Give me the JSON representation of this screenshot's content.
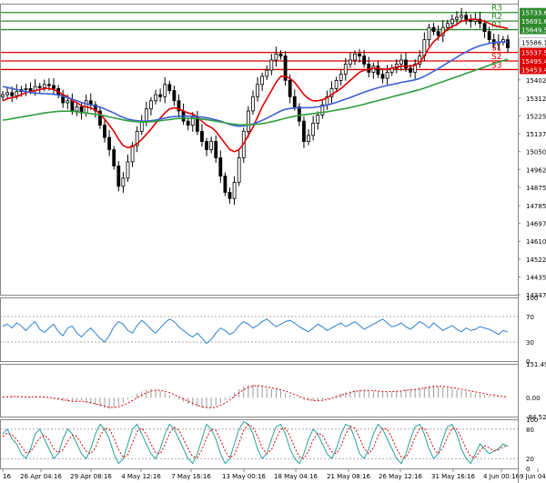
{
  "chart_data": [
    {
      "type": "candlestick",
      "panel": "price",
      "ylim": [
        14347.5,
        15777.0
      ],
      "y_ticks": [
        "15402.5",
        "15312.5",
        "15225.0",
        "15137.5",
        "15050.0",
        "14962.5",
        "14875.0",
        "14785.0",
        "14697.5",
        "14610.0",
        "14522.5",
        "14435.0",
        "14347.5"
      ],
      "x_ticks": [
        "16",
        "26 Apr 04:16",
        "29 Apr 08:16",
        "4 May 12:16",
        "7 May 16:16",
        "13 May 00:16",
        "18 May 04:16",
        "21 May 08:16",
        "26 May 12:16",
        "31 May 16:16",
        "4 Jun 00:16",
        "9 Jun 04:16"
      ],
      "levels": [
        {
          "name": "R3",
          "value": 15733.6,
          "label": "15733.6",
          "color": "#2e8b2e"
        },
        {
          "name": "R2",
          "value": 15691.6,
          "label": "15691.6",
          "color": "#2e8b2e"
        },
        {
          "name": "R1",
          "value": 15649.5,
          "label": "15649.5",
          "color": "#2e8b2e"
        },
        {
          "name": "S1",
          "value": 15537.5,
          "label": "15537.5",
          "color": "#e00000"
        },
        {
          "name": "S2",
          "value": 15495.4,
          "label": "15495.4",
          "color": "#e00000"
        },
        {
          "name": "S3",
          "value": 15453.4,
          "label": "15453.4",
          "color": "#e00000"
        }
      ],
      "price_labels": [
        {
          "label": "15586.1",
          "value": 15586.1,
          "bg": "#ffffff",
          "fg": "#000000"
        }
      ],
      "closes": [
        15330,
        15340,
        15325,
        15345,
        15355,
        15360,
        15350,
        15370,
        15365,
        15380,
        15375,
        15360,
        15330,
        15290,
        15300,
        15250,
        15270,
        15240,
        15300,
        15280,
        15250,
        15180,
        15120,
        15060,
        14980,
        14880,
        14920,
        15000,
        15080,
        15150,
        15200,
        15260,
        15300,
        15330,
        15320,
        15380,
        15350,
        15300,
        15250,
        15200,
        15180,
        15220,
        15150,
        15100,
        15060,
        15100,
        15020,
        14930,
        14850,
        14820,
        14900,
        15020,
        15150,
        15250,
        15320,
        15380,
        15420,
        15450,
        15500,
        15530,
        15520,
        15400,
        15320,
        15270,
        15200,
        15100,
        15130,
        15190,
        15230,
        15280,
        15320,
        15360,
        15400,
        15430,
        15480,
        15500,
        15530,
        15520,
        15480,
        15440,
        15470,
        15430,
        15410,
        15440,
        15460,
        15480,
        15500,
        15460,
        15440,
        15480,
        15520,
        15600,
        15660,
        15640,
        15620,
        15660,
        15680,
        15700,
        15710,
        15720,
        15700,
        15690,
        15700,
        15680,
        15640,
        15600,
        15580,
        15590,
        15600,
        15560
      ],
      "series": [
        {
          "name": "",
          "color": "#e00000",
          "values": [
            15300,
            15310,
            15315,
            15320,
            15330,
            15340,
            15345,
            15350,
            15355,
            15360,
            15360,
            15355,
            15345,
            15330,
            15320,
            15300,
            15290,
            15275,
            15270,
            15265,
            15255,
            15235,
            15210,
            15180,
            15150,
            15110,
            15080,
            15070,
            15075,
            15090,
            15110,
            15135,
            15160,
            15190,
            15215,
            15240,
            15260,
            15265,
            15260,
            15250,
            15240,
            15235,
            15220,
            15200,
            15180,
            15170,
            15150,
            15120,
            15090,
            15060,
            15050,
            15060,
            15090,
            15130,
            15170,
            15220,
            15270,
            15310,
            15350,
            15390,
            15420,
            15420,
            15410,
            15390,
            15360,
            15330,
            15310,
            15300,
            15300,
            15305,
            15315,
            15330,
            15345,
            15360,
            15380,
            15400,
            15420,
            15440,
            15450,
            15455,
            15460,
            15460,
            15455,
            15455,
            15460,
            15465,
            15470,
            15470,
            15470,
            15475,
            15490,
            15520,
            15560,
            15590,
            15610,
            15630,
            15650,
            15665,
            15675,
            15690,
            15695,
            15700,
            15700,
            15695,
            15690,
            15680,
            15670,
            15665,
            15660,
            15655
          ]
        },
        {
          "name": "",
          "color": "#3c5fd6",
          "values": [
            15370,
            15365,
            15360,
            15355,
            15350,
            15345,
            15340,
            15338,
            15336,
            15335,
            15334,
            15332,
            15328,
            15322,
            15316,
            15308,
            15300,
            15292,
            15285,
            15280,
            15275,
            15268,
            15260,
            15250,
            15240,
            15228,
            15218,
            15210,
            15205,
            15202,
            15200,
            15200,
            15202,
            15205,
            15210,
            15215,
            15220,
            15222,
            15224,
            15225,
            15225,
            15224,
            15222,
            15220,
            15216,
            15212,
            15206,
            15200,
            15192,
            15184,
            15178,
            15175,
            15176,
            15180,
            15186,
            15194,
            15204,
            15214,
            15226,
            15238,
            15250,
            15258,
            15262,
            15265,
            15266,
            15266,
            15266,
            15267,
            15270,
            15274,
            15279,
            15285,
            15292,
            15300,
            15308,
            15316,
            15325,
            15334,
            15342,
            15350,
            15357,
            15364,
            15370,
            15375,
            15380,
            15385,
            15390,
            15394,
            15398,
            15403,
            15410,
            15420,
            15432,
            15445,
            15458,
            15472,
            15486,
            15500,
            15514,
            15528,
            15540,
            15552,
            15562,
            15570,
            15576,
            15582,
            15586,
            15588,
            15589,
            15588
          ]
        },
        {
          "name": "",
          "color": "#2e9e3e",
          "values": [
            15205,
            15208,
            15212,
            15216,
            15220,
            15224,
            15228,
            15232,
            15236,
            15240,
            15243,
            15246,
            15248,
            15249,
            15249,
            15248,
            15246,
            15243,
            15240,
            15237,
            15234,
            15230,
            15226,
            15221,
            15216,
            15211,
            15206,
            15202,
            15199,
            15197,
            15196,
            15196,
            15197,
            15199,
            15202,
            15205,
            15208,
            15211,
            15213,
            15214,
            15214,
            15213,
            15212,
            15210,
            15207,
            15204,
            15200,
            15196,
            15192,
            15188,
            15185,
            15183,
            15182,
            15182,
            15183,
            15185,
            15188,
            15192,
            15197,
            15202,
            15208,
            15214,
            15219,
            15224,
            15228,
            15231,
            15234,
            15237,
            15240,
            15243,
            15246,
            15250,
            15254,
            15258,
            15262,
            15267,
            15272,
            15277,
            15283,
            15289,
            15295,
            15301,
            15307,
            15313,
            15319,
            15325,
            15331,
            15337,
            15343,
            15349,
            15355,
            15362,
            15370,
            15378,
            15386,
            15394,
            15402,
            15410,
            15418,
            15426,
            15434,
            15442,
            15450,
            15458,
            15466,
            15474,
            15482,
            15490,
            15497,
            15504
          ]
        }
      ]
    },
    {
      "type": "line",
      "panel": "oscillator",
      "ylim": [
        0,
        100
      ],
      "y_ticks": [
        "100",
        "70",
        "30",
        "0"
      ],
      "series": [
        {
          "name": "",
          "color": "#2a7fd4",
          "values": [
            55,
            58,
            52,
            60,
            55,
            48,
            56,
            62,
            50,
            45,
            52,
            58,
            46,
            40,
            52,
            55,
            44,
            38,
            46,
            52,
            44,
            36,
            30,
            40,
            54,
            62,
            58,
            48,
            44,
            56,
            64,
            58,
            50,
            44,
            52,
            60,
            66,
            62,
            54,
            48,
            42,
            38,
            44,
            36,
            28,
            34,
            44,
            52,
            48,
            42,
            46,
            56,
            62,
            58,
            52,
            56,
            62,
            66,
            60,
            54,
            58,
            62,
            64,
            60,
            54,
            50,
            46,
            52,
            58,
            54,
            48,
            52,
            56,
            60,
            54,
            58,
            62,
            56,
            50,
            54,
            58,
            62,
            66,
            60,
            54,
            56,
            60,
            54,
            50,
            56,
            62,
            58,
            52,
            60,
            54,
            48,
            52,
            56,
            50,
            46,
            52,
            48,
            50,
            54,
            52,
            50,
            46,
            42,
            48,
            46
          ]
        }
      ]
    },
    {
      "type": "histogram",
      "panel": "macd",
      "ylim": [
        -84.52,
        151.49
      ],
      "y_ticks": [
        "151.49",
        "0.00",
        "-84.52"
      ],
      "values": [
        4,
        6,
        8,
        5,
        3,
        2,
        4,
        6,
        5,
        3,
        -2,
        -6,
        -10,
        -14,
        -18,
        -20,
        -16,
        -14,
        -22,
        -28,
        -34,
        -40,
        -46,
        -50,
        -44,
        -36,
        -22,
        -8,
        6,
        18,
        28,
        36,
        40,
        38,
        30,
        22,
        12,
        2,
        -8,
        -18,
        -28,
        -36,
        -42,
        -46,
        -48,
        -44,
        -36,
        -24,
        -10,
        6,
        22,
        38,
        50,
        58,
        60,
        56,
        50,
        44,
        40,
        36,
        32,
        22,
        12,
        4,
        -4,
        -10,
        -14,
        -16,
        -14,
        -10,
        -4,
        2,
        10,
        18,
        24,
        30,
        34,
        36,
        36,
        34,
        30,
        28,
        26,
        24,
        26,
        28,
        32,
        36,
        38,
        40,
        44,
        48,
        52,
        54,
        52,
        48,
        44,
        40,
        36,
        32,
        28,
        24,
        20,
        16,
        12,
        8,
        6,
        4,
        2,
        0
      ],
      "signal_values": [
        3,
        4,
        5,
        5,
        4,
        3,
        3,
        4,
        4,
        3,
        1,
        -2,
        -5,
        -9,
        -13,
        -16,
        -16,
        -16,
        -18,
        -22,
        -27,
        -32,
        -38,
        -43,
        -44,
        -41,
        -34,
        -24,
        -12,
        0,
        12,
        22,
        30,
        34,
        33,
        29,
        22,
        14,
        4,
        -6,
        -16,
        -25,
        -33,
        -40,
        -44,
        -45,
        -42,
        -35,
        -24,
        -10,
        6,
        22,
        36,
        46,
        52,
        54,
        52,
        48,
        44,
        40,
        36,
        30,
        22,
        14,
        6,
        -2,
        -8,
        -12,
        -13,
        -12,
        -8,
        -3,
        4,
        11,
        17,
        23,
        28,
        31,
        33,
        33,
        32,
        30,
        28,
        27,
        27,
        28,
        30,
        33,
        35,
        37,
        40,
        43,
        47,
        50,
        51,
        50,
        48,
        45,
        42,
        38,
        34,
        30,
        26,
        22,
        18,
        14,
        11,
        8,
        5,
        3
      ]
    },
    {
      "type": "line",
      "panel": "stochastic",
      "ylim": [
        0,
        100
      ],
      "y_ticks": [
        "100",
        "80",
        "20",
        "0"
      ],
      "series": [
        {
          "name": "",
          "color": "#2aa39a",
          "values": [
            70,
            80,
            60,
            50,
            30,
            20,
            40,
            70,
            80,
            60,
            40,
            20,
            30,
            60,
            80,
            70,
            50,
            30,
            20,
            40,
            70,
            90,
            80,
            60,
            30,
            10,
            20,
            50,
            80,
            90,
            70,
            50,
            30,
            20,
            40,
            70,
            90,
            80,
            60,
            40,
            20,
            10,
            30,
            60,
            90,
            80,
            60,
            30,
            10,
            20,
            50,
            80,
            95,
            90,
            70,
            40,
            20,
            30,
            60,
            85,
            90,
            70,
            40,
            20,
            10,
            30,
            60,
            80,
            70,
            50,
            30,
            20,
            40,
            70,
            90,
            85,
            60,
            30,
            20,
            40,
            70,
            90,
            80,
            60,
            40,
            20,
            10,
            30,
            60,
            85,
            90,
            70,
            40,
            20,
            30,
            60,
            85,
            90,
            70,
            40,
            20,
            10,
            30,
            50,
            40,
            30,
            35,
            40,
            50,
            45
          ]
        },
        {
          "name": "",
          "color": "#e00000",
          "values": [
            65,
            72,
            68,
            60,
            45,
            32,
            34,
            48,
            62,
            68,
            58,
            40,
            32,
            38,
            55,
            68,
            65,
            50,
            35,
            30,
            42,
            65,
            82,
            80,
            62,
            38,
            22,
            28,
            52,
            75,
            82,
            70,
            50,
            32,
            30,
            48,
            72,
            84,
            78,
            60,
            40,
            24,
            22,
            38,
            62,
            80,
            78,
            58,
            36,
            22,
            28,
            52,
            78,
            90,
            84,
            66,
            42,
            30,
            38,
            60,
            80,
            82,
            66,
            42,
            24,
            20,
            36,
            58,
            72,
            68,
            50,
            34,
            30,
            46,
            70,
            86,
            82,
            62,
            40,
            30,
            42,
            66,
            82,
            80,
            62,
            40,
            24,
            22,
            40,
            64,
            82,
            82,
            64,
            42,
            30,
            42,
            64,
            82,
            80,
            62,
            40,
            24,
            22,
            36,
            46,
            42,
            36,
            38,
            44,
            46
          ]
        }
      ]
    }
  ]
}
